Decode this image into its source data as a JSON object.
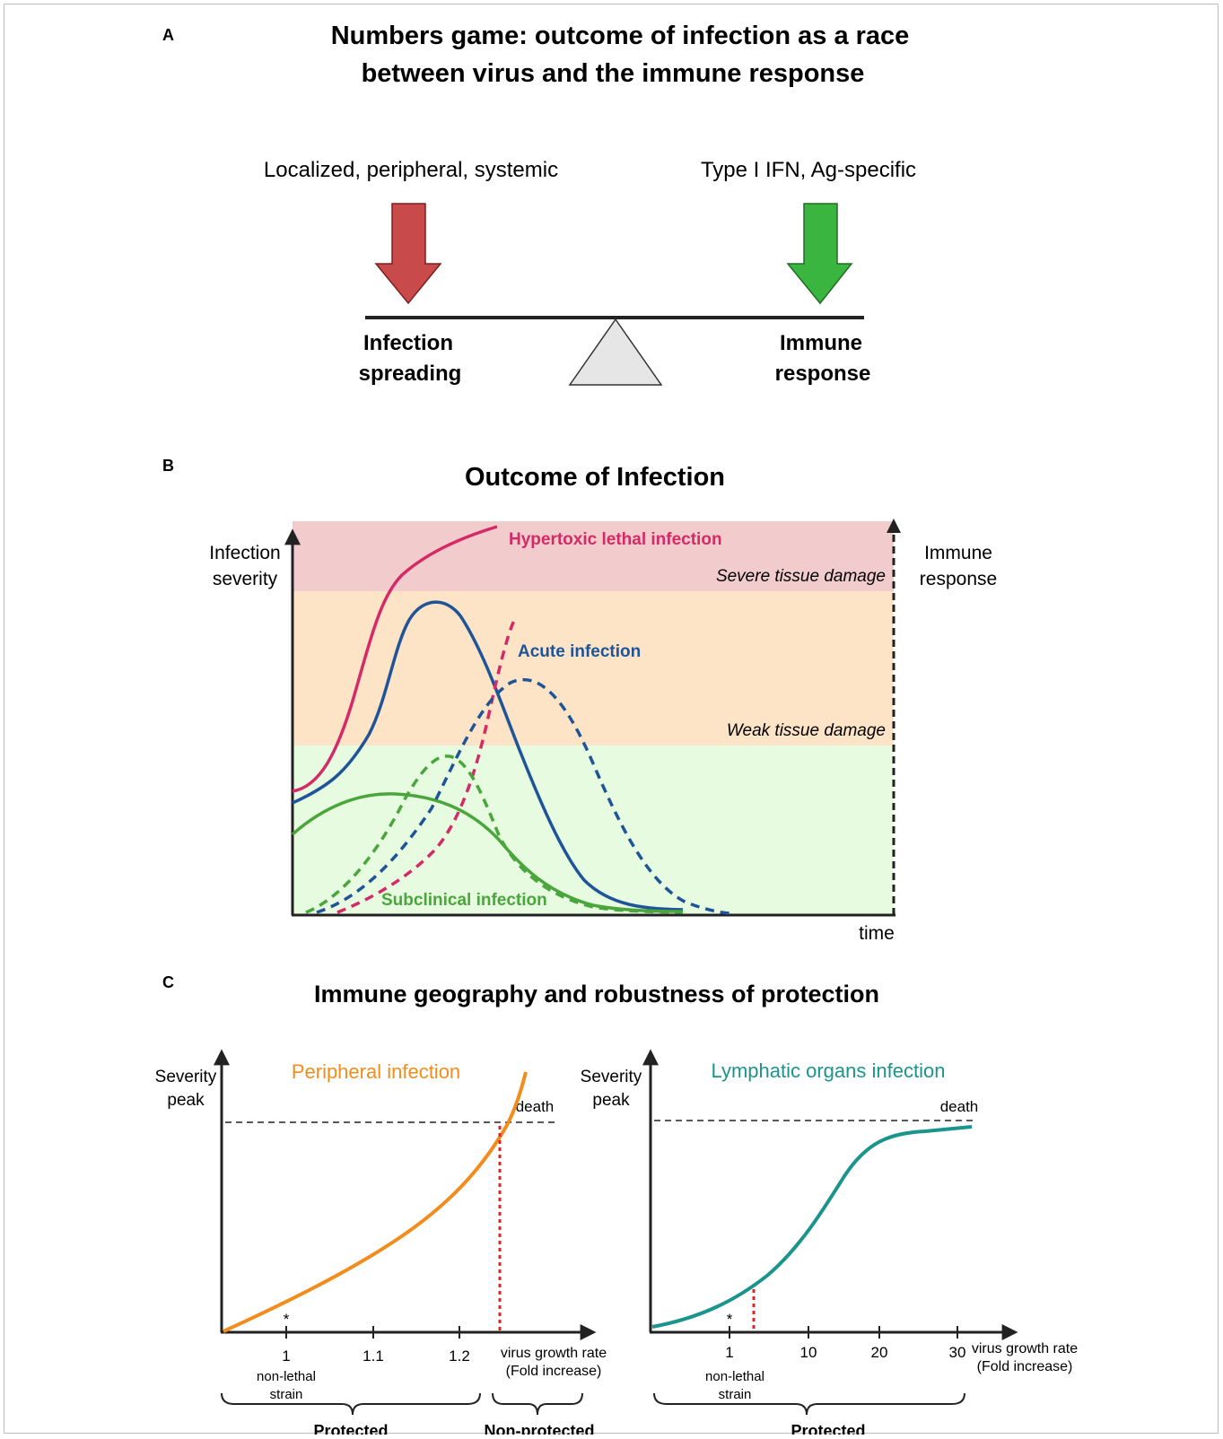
{
  "panelA": {
    "letter": "A",
    "title_line1": "Numbers game: outcome of infection as a race",
    "title_line2": "between virus and the immune response",
    "left_caption": "Localized, peripheral, systemic",
    "right_caption": "Type I IFN, Ag-specific",
    "left_label_line1": "Infection",
    "left_label_line2": "spreading",
    "right_label_line1": "Immune",
    "right_label_line2": "response",
    "colors": {
      "left_arrow": "#c94a4a",
      "right_arrow": "#3ab540",
      "fulcrum": "#e6e6e6"
    }
  },
  "panelB": {
    "letter": "B",
    "title": "Outcome of Infection",
    "y_left_line1": "Infection",
    "y_left_line2": "severity",
    "y_right_line1": "Immune",
    "y_right_line2": "response",
    "x_label": "time",
    "zones": [
      {
        "label": "Severe tissue damage",
        "color": "#f2cccc"
      },
      {
        "label": "Weak tissue damage",
        "color": "#fde4c6"
      },
      {
        "label": "",
        "color": "#e6fbdf"
      }
    ],
    "curve_labels": {
      "hypertoxic": "Hypertoxic lethal infection",
      "acute": "Acute infection",
      "subclinical": "Subclinical infection"
    },
    "colors": {
      "hypertoxic": "#d42a67",
      "acute": "#1f5598",
      "subclinical": "#4aa63c"
    }
  },
  "panelC": {
    "letter": "C",
    "title": "Immune geography and robustness of protection",
    "left": {
      "subtitle": "Peripheral infection",
      "ylabel_line1": "Severity",
      "ylabel_line2": "peak",
      "death_label": "death",
      "ticks": [
        "1",
        "1.1",
        "1.2"
      ],
      "xlabel_line1": "virus growth rate",
      "xlabel_line2": "(Fold increase)",
      "star": "*",
      "strain_line1": "non-lethal",
      "strain_line2": "strain",
      "protected": "Protected",
      "nonprotected": "Non-protected",
      "color": "#f28c1c"
    },
    "right": {
      "subtitle": "Lymphatic organs infection",
      "ylabel_line1": "Severity",
      "ylabel_line2": "peak",
      "death_label": "death",
      "ticks": [
        "1",
        "10",
        "20",
        "30"
      ],
      "xlabel_line1": "virus growth rate",
      "xlabel_line2": "(Fold increase)",
      "star": "*",
      "strain_line1": "non-lethal",
      "strain_line2": "strain",
      "protected": "Protected",
      "color": "#1b948c"
    },
    "threshold_color": "#e02424"
  }
}
